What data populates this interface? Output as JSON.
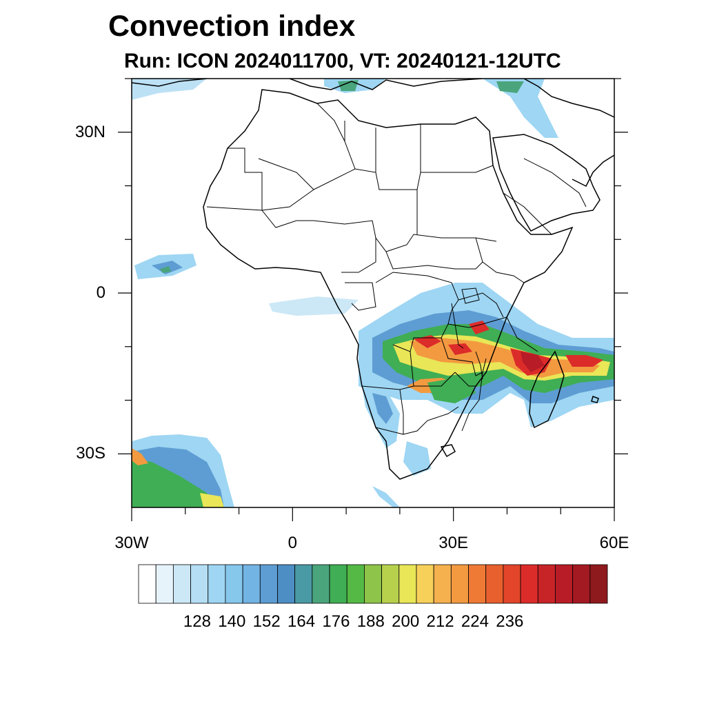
{
  "title": "Convection index",
  "subtitle": "Run: ICON 2024011700,  VT: 20240121-12UTC",
  "map": {
    "projection": "cylindrical equidistant",
    "lon_range": [
      -30,
      60
    ],
    "lat_range": [
      -40,
      40
    ],
    "y_ticks": [
      {
        "label": "30N",
        "lat": 30
      },
      {
        "label": "0",
        "lat": 0
      },
      {
        "label": "30S",
        "lat": -30
      }
    ],
    "x_ticks": [
      {
        "label": "30W",
        "lon": -30
      },
      {
        "label": "0",
        "lon": 0
      },
      {
        "label": "30E",
        "lon": 30
      },
      {
        "label": "60E",
        "lon": 60
      }
    ],
    "field": "convection index",
    "region": "Africa"
  },
  "colorbar": {
    "labels": [
      "128",
      "140",
      "152",
      "164",
      "176",
      "188",
      "200",
      "212",
      "224",
      "236"
    ],
    "colors": [
      "#ffffff",
      "#e7f3fb",
      "#cce8f6",
      "#b5def4",
      "#9ed6f3",
      "#86c7ec",
      "#72b4e3",
      "#5e9dd3",
      "#4d8ec4",
      "#4a9aa5",
      "#4aa57c",
      "#3fae54",
      "#54b945",
      "#8ec44a",
      "#b7d14d",
      "#e9e657",
      "#f7d05a",
      "#f5b14e",
      "#f39a40",
      "#ef7a35",
      "#e8602e",
      "#e2452a",
      "#dc2c2a",
      "#c72428",
      "#b81c26",
      "#a41a22",
      "#8f1a1e"
    ]
  }
}
